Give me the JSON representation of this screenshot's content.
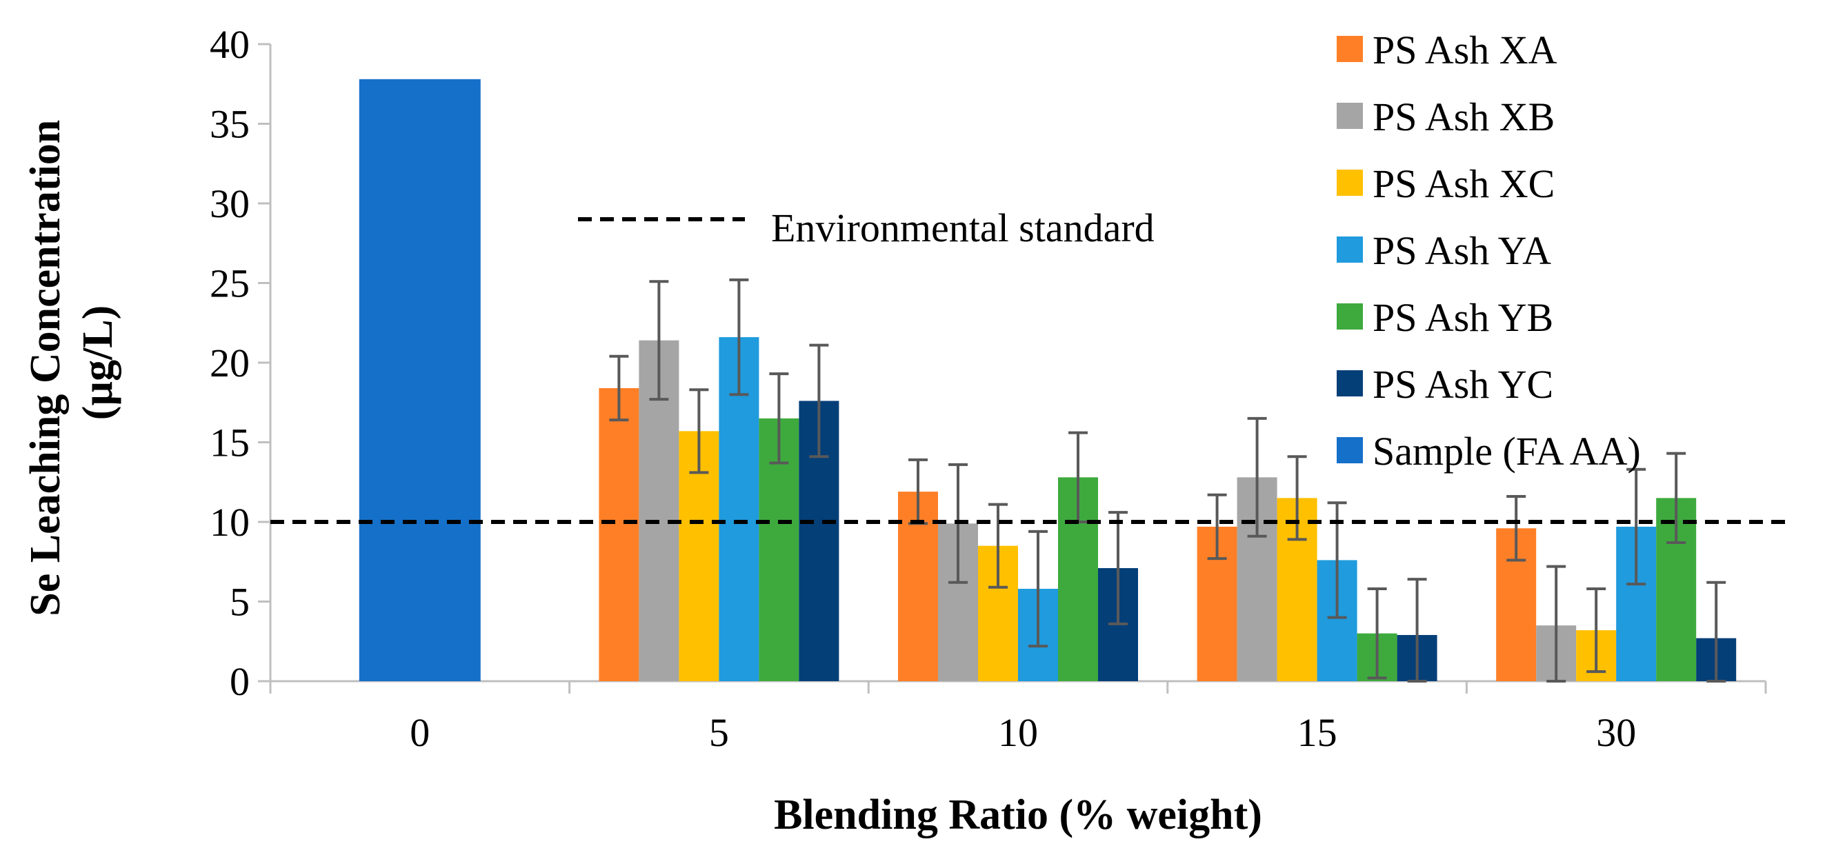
{
  "chart_data": {
    "type": "bar",
    "categories": [
      "0",
      "5",
      "10",
      "15",
      "30"
    ],
    "xlabel": "Blending Ratio (% weight)",
    "ylabel_lines": [
      "Se Leaching Concentration",
      "(µg/L)"
    ],
    "ylim": [
      0,
      40
    ],
    "yticks": [
      0,
      5,
      10,
      15,
      20,
      25,
      30,
      35,
      40
    ],
    "grid": false,
    "legend_position": "top-right",
    "series": [
      {
        "name": "PS Ash XA",
        "color": "#FF7F27",
        "values": [
          null,
          18.4,
          11.9,
          9.7,
          9.6
        ],
        "errors": [
          null,
          2.0,
          2.0,
          2.0,
          2.0
        ]
      },
      {
        "name": "PS Ash XB",
        "color": "#A5A5A5",
        "values": [
          null,
          21.4,
          9.9,
          12.8,
          3.5
        ],
        "errors": [
          null,
          3.7,
          3.7,
          3.7,
          3.7
        ]
      },
      {
        "name": "PS Ash XC",
        "color": "#FFC000",
        "values": [
          null,
          15.7,
          8.5,
          11.5,
          3.2
        ],
        "errors": [
          null,
          2.6,
          2.6,
          2.6,
          2.6
        ]
      },
      {
        "name": "PS Ash YA",
        "color": "#1F9BDE",
        "values": [
          null,
          21.6,
          5.8,
          7.6,
          9.7
        ],
        "errors": [
          null,
          3.6,
          3.6,
          3.6,
          3.6
        ]
      },
      {
        "name": "PS Ash YB",
        "color": "#3EAA3E",
        "values": [
          null,
          16.5,
          12.8,
          3.0,
          11.5
        ],
        "errors": [
          null,
          2.8,
          2.8,
          2.8,
          2.8
        ]
      },
      {
        "name": "PS Ash YC",
        "color": "#053F78",
        "values": [
          null,
          17.6,
          7.1,
          2.9,
          2.7
        ],
        "errors": [
          null,
          3.5,
          3.5,
          3.5,
          3.5
        ]
      },
      {
        "name": "Sample (FA AA)",
        "color": "#1570C9",
        "values": [
          37.8,
          null,
          null,
          null,
          null
        ],
        "errors": [
          null,
          null,
          null,
          null,
          null
        ]
      }
    ],
    "reference_line": {
      "label": "Environmental standard",
      "value": 10,
      "style": "dashed",
      "color": "#000000"
    },
    "error_bar_color": "#595959"
  }
}
